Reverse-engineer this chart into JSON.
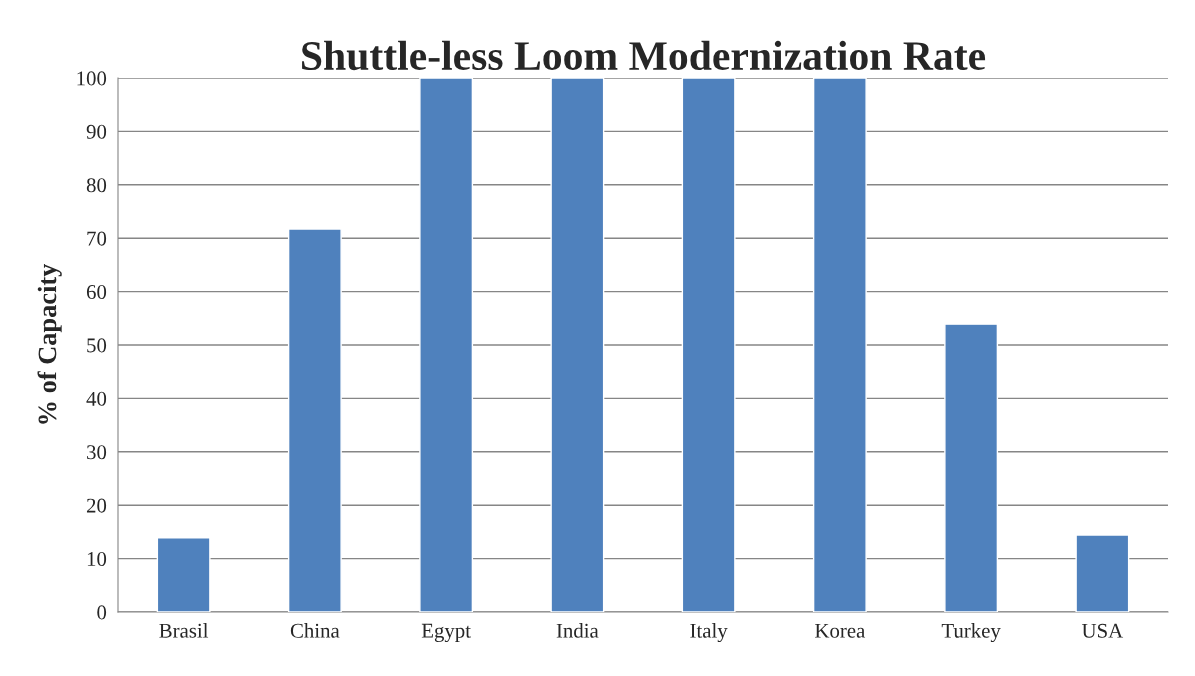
{
  "chart_data": {
    "type": "bar",
    "title": "Shuttle-less Loom Modernization Rate",
    "ylabel": "% of Capacity",
    "categories": [
      "Brasil",
      "China",
      "Egypt",
      "India",
      "Italy",
      "Korea",
      "Turkey",
      "USA"
    ],
    "values": [
      13.9,
      71.7,
      100,
      100,
      100,
      100,
      53.9,
      14.4
    ],
    "color": "#4f81bd",
    "ylim": [
      0,
      100
    ],
    "yticks": [
      0,
      10,
      20,
      30,
      40,
      50,
      60,
      70,
      80,
      90,
      100
    ],
    "grid": "y",
    "legend": false
  }
}
